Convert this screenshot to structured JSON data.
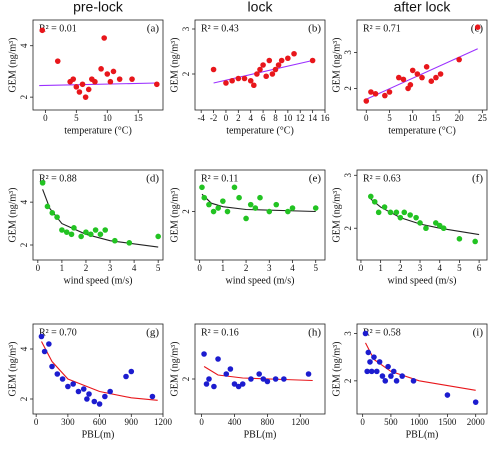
{
  "column_titles": [
    "pre-lock",
    "lock",
    "after lock"
  ],
  "chart_data": [
    {
      "type": "scatter",
      "panel": "(a)",
      "annotation": "R² = 0.01",
      "xlabel": "temperature (°C)",
      "ylabel": "GEM (ng/m³)",
      "xlim": [
        -2,
        19
      ],
      "xticks": [
        0,
        5,
        10,
        15
      ],
      "ylim": [
        1.5,
        5
      ],
      "yticks": [
        2,
        4
      ],
      "color": "#e8161b",
      "x": [
        -0.5,
        2,
        4,
        4.5,
        5,
        5.5,
        6,
        6.5,
        7,
        7.5,
        8,
        9,
        9.5,
        10,
        10.5,
        11,
        12,
        14,
        18
      ],
      "values": [
        4.6,
        3.4,
        2.6,
        2.7,
        2.4,
        2.2,
        2.5,
        2.0,
        2.3,
        2.7,
        2.6,
        3.1,
        4.3,
        2.9,
        2.6,
        3.0,
        2.7,
        2.7,
        2.5
      ],
      "fit": {
        "color": "#9b30ff",
        "x": [
          -1,
          18
        ],
        "values": [
          2.45,
          2.55
        ]
      }
    },
    {
      "type": "scatter",
      "panel": "(b)",
      "annotation": "R² = 0.43",
      "xlabel": "temperature (°C)",
      "ylabel": "GEM (ng/m³)",
      "xlim": [
        -5,
        16
      ],
      "xticks": [
        -4,
        -2,
        0,
        2,
        4,
        6,
        8,
        10,
        12,
        14,
        16
      ],
      "ylim": [
        1.2,
        3.2
      ],
      "yticks": [
        2,
        3
      ],
      "color": "#e8161b",
      "x": [
        -2,
        0,
        1,
        2,
        3,
        4,
        4.5,
        5,
        5.5,
        6,
        6.5,
        7,
        7.5,
        8,
        8.5,
        9,
        10,
        11,
        14
      ],
      "values": [
        2.1,
        1.8,
        1.85,
        1.9,
        1.9,
        1.85,
        1.75,
        2.0,
        2.1,
        2.2,
        1.95,
        2.3,
        2.0,
        2.1,
        2.2,
        2.3,
        2.35,
        2.45,
        2.3
      ],
      "fit": {
        "color": "#9b30ff",
        "x": [
          -2,
          14
        ],
        "values": [
          1.8,
          2.3
        ]
      }
    },
    {
      "type": "scatter",
      "panel": "(c)",
      "annotation": "R² = 0.71",
      "xlabel": "temperature (°C)",
      "ylabel": "GEM (ng/m³)",
      "xlim": [
        -2,
        26
      ],
      "xticks": [
        0,
        5,
        10,
        15,
        20,
        25
      ],
      "ylim": [
        1.4,
        3.9
      ],
      "yticks": [
        2,
        3
      ],
      "color": "#e8161b",
      "x": [
        0,
        1,
        2,
        4,
        5,
        7,
        8,
        9,
        9.5,
        10,
        11,
        12,
        13,
        14,
        15,
        16,
        20,
        24
      ],
      "values": [
        1.65,
        1.9,
        1.85,
        1.8,
        1.9,
        2.3,
        2.25,
        2.0,
        2.1,
        2.5,
        2.4,
        2.3,
        2.6,
        2.2,
        2.3,
        2.4,
        2.8,
        3.7
      ],
      "fit": {
        "color": "#9b30ff",
        "x": [
          0,
          24
        ],
        "values": [
          1.7,
          3.1
        ]
      }
    },
    {
      "type": "scatter",
      "panel": "(d)",
      "annotation": "R² = 0.88",
      "xlabel": "wind speed (m/s)",
      "ylabel": "GEM (ng/m³)",
      "xlim": [
        -0.2,
        5.2
      ],
      "xticks": [
        0,
        1,
        2,
        3,
        4,
        5
      ],
      "ylim": [
        1.3,
        5.5
      ],
      "yticks": [
        2,
        4
      ],
      "color": "#22c322",
      "x": [
        0.2,
        0.4,
        0.6,
        0.8,
        1,
        1.2,
        1.4,
        1.5,
        1.8,
        2,
        2.2,
        2.4,
        2.6,
        2.8,
        3.2,
        3.8,
        5
      ],
      "values": [
        4.9,
        3.8,
        3.5,
        3.3,
        2.7,
        2.6,
        2.5,
        2.8,
        2.4,
        2.6,
        2.5,
        2.7,
        2.5,
        2.7,
        2.2,
        2.1,
        2.4
      ],
      "fit": {
        "color": "#222222",
        "x": [
          0.2,
          0.5,
          1,
          2,
          3,
          5
        ],
        "values": [
          4.6,
          3.7,
          3.0,
          2.5,
          2.2,
          1.9
        ]
      }
    },
    {
      "type": "scatter",
      "panel": "(e)",
      "annotation": "R² = 0.11",
      "xlabel": "wind speed (m/s)",
      "ylabel": "GEM (ng/m³)",
      "xlim": [
        -0.2,
        5.4
      ],
      "xticks": [
        0,
        1,
        2,
        3,
        4,
        5
      ],
      "ylim": [
        1.3,
        2.6
      ],
      "yticks": [
        2
      ],
      "color": "#22c322",
      "x": [
        0.1,
        0.2,
        0.4,
        0.6,
        0.8,
        1,
        1.2,
        1.5,
        1.7,
        2,
        2.2,
        2.4,
        2.6,
        3,
        3.3,
        3.8,
        4,
        5
      ],
      "values": [
        2.35,
        2.2,
        2.1,
        2.0,
        2.05,
        2.15,
        2.0,
        2.35,
        2.2,
        1.9,
        2.1,
        2.05,
        2.2,
        2.0,
        2.1,
        2.0,
        2.05,
        2.05
      ],
      "fit": {
        "color": "#222222",
        "x": [
          0.1,
          0.5,
          1,
          2,
          5
        ],
        "values": [
          2.25,
          2.12,
          2.07,
          2.03,
          2.0
        ]
      }
    },
    {
      "type": "scatter",
      "panel": "(f)",
      "annotation": "R² = 0.63",
      "xlabel": "wind speed (m/s)",
      "ylabel": "GEM (ng/m³)",
      "xlim": [
        -0.2,
        6.4
      ],
      "xticks": [
        0,
        1,
        2,
        3,
        4,
        5,
        6
      ],
      "ylim": [
        1.4,
        3.1
      ],
      "yticks": [
        2,
        3
      ],
      "color": "#22c322",
      "x": [
        0.5,
        0.7,
        0.9,
        1.2,
        1.5,
        1.8,
        2,
        2.2,
        2.5,
        2.8,
        3,
        3.3,
        3.8,
        4,
        4.2,
        5,
        5.8
      ],
      "values": [
        2.6,
        2.5,
        2.3,
        2.4,
        2.3,
        2.3,
        2.2,
        2.3,
        2.25,
        2.2,
        2.1,
        2.0,
        2.1,
        2.05,
        2.0,
        1.8,
        1.75
      ],
      "fit": {
        "color": "#222222",
        "x": [
          0.5,
          1,
          2,
          3,
          4,
          6
        ],
        "values": [
          2.55,
          2.4,
          2.2,
          2.08,
          2.0,
          1.88
        ]
      }
    },
    {
      "type": "scatter",
      "panel": "(g)",
      "annotation": "R² = 0.70",
      "xlabel": "PBL(m)",
      "ylabel": "GEM (ng/m³)",
      "xlim": [
        -30,
        1200
      ],
      "xticks": [
        0,
        300,
        600,
        900,
        1200
      ],
      "ylim": [
        1.4,
        5
      ],
      "yticks": [
        2,
        4
      ],
      "color": "#1c1ccf",
      "x": [
        50,
        80,
        120,
        150,
        200,
        250,
        300,
        350,
        400,
        450,
        480,
        500,
        550,
        600,
        650,
        700,
        850,
        900,
        1100
      ],
      "values": [
        4.5,
        3.9,
        4.2,
        3.3,
        3.0,
        2.8,
        2.5,
        2.6,
        2.3,
        2.4,
        2.0,
        2.2,
        1.9,
        1.8,
        2.1,
        2.3,
        2.9,
        3.1,
        2.1
      ],
      "fit": {
        "color": "#e8161b",
        "x": [
          50,
          150,
          300,
          600,
          900,
          1150
        ],
        "values": [
          4.3,
          3.5,
          2.8,
          2.3,
          2.05,
          1.95
        ]
      }
    },
    {
      "type": "scatter",
      "panel": "(h)",
      "annotation": "R² = 0.16",
      "xlabel": "PBL(m)",
      "ylabel": "GEM (ng/m³)",
      "xlim": [
        -80,
        1500
      ],
      "xticks": [
        0,
        400,
        800,
        1200
      ],
      "ylim": [
        1.3,
        3.1
      ],
      "yticks": [
        2
      ],
      "color": "#1c1ccf",
      "x": [
        30,
        60,
        90,
        150,
        200,
        300,
        350,
        400,
        450,
        500,
        600,
        700,
        750,
        800,
        900,
        1000,
        1300
      ],
      "values": [
        2.5,
        1.9,
        2.0,
        1.85,
        2.4,
        2.1,
        2.2,
        1.9,
        1.85,
        1.9,
        2.0,
        2.1,
        2.0,
        1.95,
        2.0,
        2.0,
        2.1
      ],
      "fit": {
        "color": "#e8161b",
        "x": [
          30,
          200,
          500,
          1000,
          1350
        ],
        "values": [
          2.25,
          2.08,
          2.02,
          1.99,
          1.97
        ]
      }
    },
    {
      "type": "scatter",
      "panel": "(i)",
      "annotation": "R² = 0.58",
      "xlabel": "PBL(m)",
      "ylabel": "GEM (ng/m³)",
      "xlim": [
        -100,
        2200
      ],
      "xticks": [
        0,
        500,
        1000,
        1500,
        2000
      ],
      "ylim": [
        1.3,
        3.2
      ],
      "yticks": [
        2,
        3
      ],
      "color": "#1c1ccf",
      "x": [
        50,
        80,
        100,
        130,
        160,
        200,
        250,
        300,
        350,
        400,
        450,
        500,
        550,
        600,
        700,
        900,
        1500,
        2000
      ],
      "values": [
        3.0,
        2.2,
        2.6,
        2.4,
        2.2,
        2.5,
        2.2,
        2.4,
        2.1,
        2.0,
        2.3,
        2.1,
        2.2,
        2.0,
        2.1,
        2.0,
        1.7,
        1.55
      ],
      "fit": {
        "color": "#e8161b",
        "x": [
          50,
          200,
          500,
          1000,
          2000
        ],
        "values": [
          2.8,
          2.45,
          2.2,
          2.0,
          1.8
        ]
      }
    }
  ]
}
